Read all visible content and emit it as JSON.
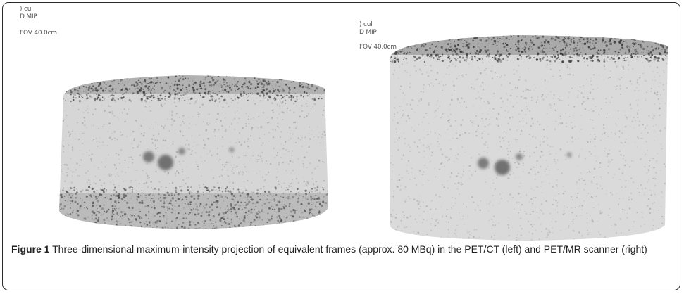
{
  "panels": [
    {
      "id": "petct",
      "overlay": [
        ") cul",
        "D MIP",
        "FOV 40.0cm"
      ]
    },
    {
      "id": "petmr",
      "overlay": [
        ") cul",
        "D MIP",
        "FOV 40.0cm"
      ]
    }
  ],
  "caption": {
    "label": "Figure 1",
    "text": " Three-dimensional maximum-intensity projection of equivalent frames (approx. 80 MBq) in the PET/CT (left) and PET/MR scanner (right)"
  },
  "colors": {
    "ink": "#1e1e1e",
    "speckle": "#6a6a6a",
    "hot": "#7d7d7d",
    "frame": "#2a2a2a"
  }
}
